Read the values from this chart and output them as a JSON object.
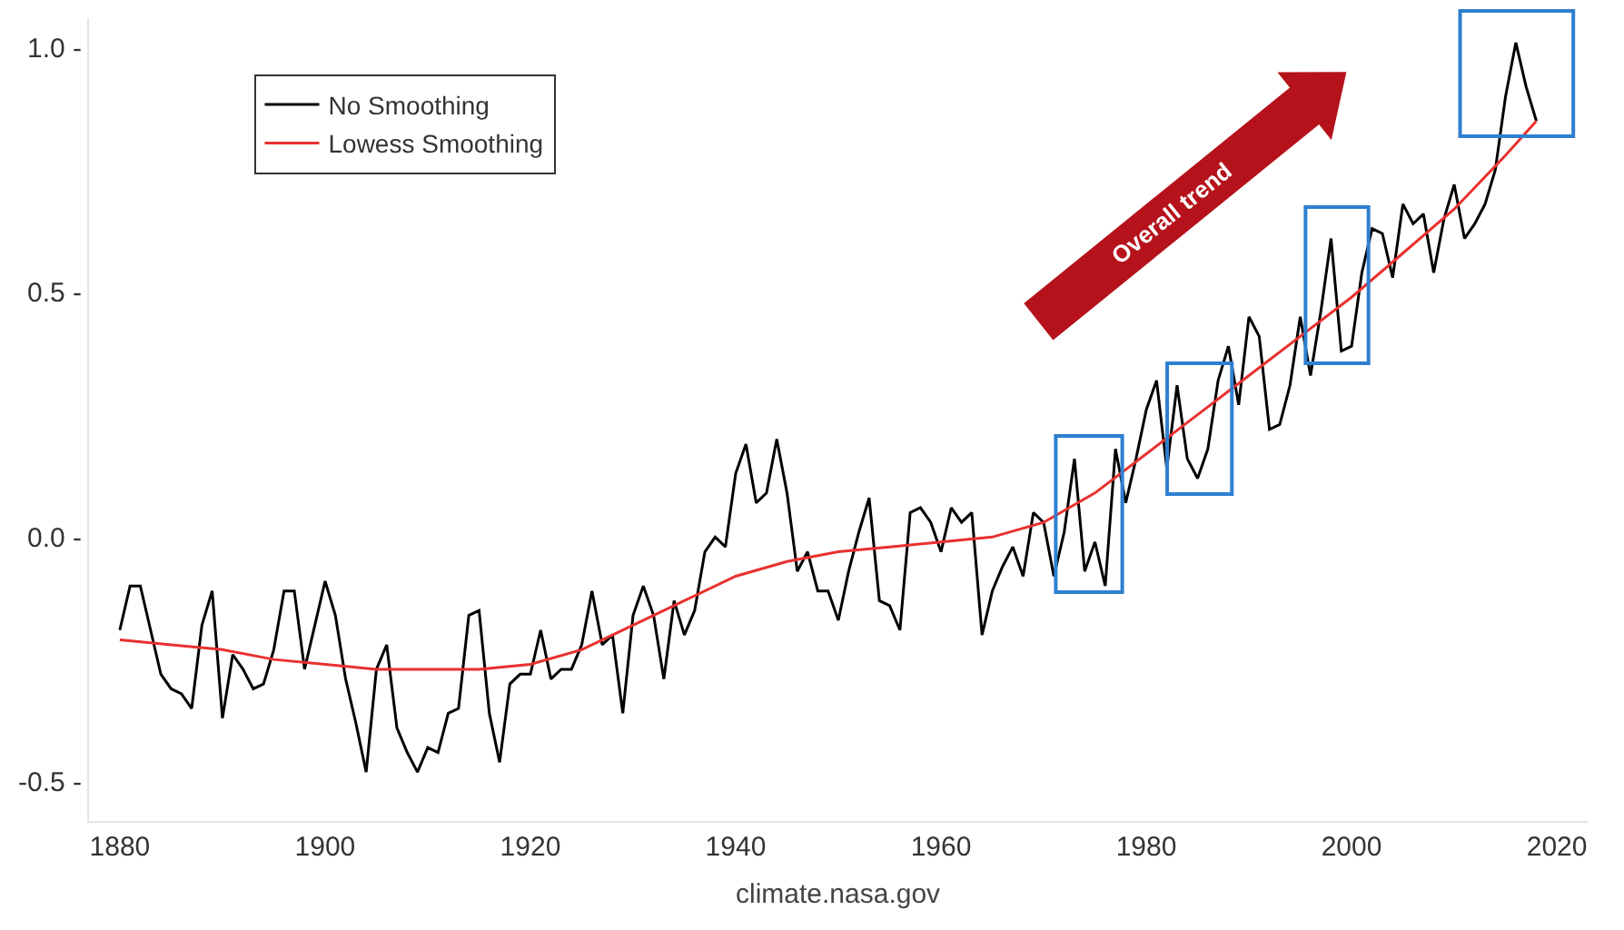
{
  "chart_data": {
    "type": "line",
    "x": [
      1880,
      1881,
      1882,
      1883,
      1884,
      1885,
      1886,
      1887,
      1888,
      1889,
      1890,
      1891,
      1892,
      1893,
      1894,
      1895,
      1896,
      1897,
      1898,
      1899,
      1900,
      1901,
      1902,
      1903,
      1904,
      1905,
      1906,
      1907,
      1908,
      1909,
      1910,
      1911,
      1912,
      1913,
      1914,
      1915,
      1916,
      1917,
      1918,
      1919,
      1920,
      1921,
      1922,
      1923,
      1924,
      1925,
      1926,
      1927,
      1928,
      1929,
      1930,
      1931,
      1932,
      1933,
      1934,
      1935,
      1936,
      1937,
      1938,
      1939,
      1940,
      1941,
      1942,
      1943,
      1944,
      1945,
      1946,
      1947,
      1948,
      1949,
      1950,
      1951,
      1952,
      1953,
      1954,
      1955,
      1956,
      1957,
      1958,
      1959,
      1960,
      1961,
      1962,
      1963,
      1964,
      1965,
      1966,
      1967,
      1968,
      1969,
      1970,
      1971,
      1972,
      1973,
      1974,
      1975,
      1976,
      1977,
      1978,
      1979,
      1980,
      1981,
      1982,
      1983,
      1984,
      1985,
      1986,
      1987,
      1988,
      1989,
      1990,
      1991,
      1992,
      1993,
      1994,
      1995,
      1996,
      1997,
      1998,
      1999,
      2000,
      2001,
      2002,
      2003,
      2004,
      2005,
      2006,
      2007,
      2008,
      2009,
      2010,
      2011,
      2012,
      2013,
      2014,
      2015,
      2016,
      2017,
      2018
    ],
    "series": [
      {
        "name": "No Smoothing",
        "color": "#000000",
        "values": [
          -0.19,
          -0.1,
          -0.1,
          -0.19,
          -0.28,
          -0.31,
          -0.32,
          -0.35,
          -0.18,
          -0.11,
          -0.37,
          -0.24,
          -0.27,
          -0.31,
          -0.3,
          -0.23,
          -0.11,
          -0.11,
          -0.27,
          -0.18,
          -0.09,
          -0.16,
          -0.29,
          -0.38,
          -0.48,
          -0.27,
          -0.22,
          -0.39,
          -0.44,
          -0.48,
          -0.43,
          -0.44,
          -0.36,
          -0.35,
          -0.16,
          -0.15,
          -0.36,
          -0.46,
          -0.3,
          -0.28,
          -0.28,
          -0.19,
          -0.29,
          -0.27,
          -0.27,
          -0.22,
          -0.11,
          -0.22,
          -0.2,
          -0.36,
          -0.16,
          -0.1,
          -0.16,
          -0.29,
          -0.13,
          -0.2,
          -0.15,
          -0.03,
          0.0,
          -0.02,
          0.13,
          0.19,
          0.07,
          0.09,
          0.2,
          0.09,
          -0.07,
          -0.03,
          -0.11,
          -0.11,
          -0.17,
          -0.07,
          0.01,
          0.08,
          -0.13,
          -0.14,
          -0.19,
          0.05,
          0.06,
          0.03,
          -0.03,
          0.06,
          0.03,
          0.05,
          -0.2,
          -0.11,
          -0.06,
          -0.02,
          -0.08,
          0.05,
          0.03,
          -0.08,
          0.01,
          0.16,
          -0.07,
          -0.01,
          -0.1,
          0.18,
          0.07,
          0.16,
          0.26,
          0.32,
          0.14,
          0.31,
          0.16,
          0.12,
          0.18,
          0.32,
          0.39,
          0.27,
          0.45,
          0.41,
          0.22,
          0.23,
          0.31,
          0.45,
          0.33,
          0.46,
          0.61,
          0.38,
          0.39,
          0.54,
          0.63,
          0.62,
          0.53,
          0.68,
          0.64,
          0.66,
          0.54,
          0.65,
          0.72,
          0.61,
          0.64,
          0.68,
          0.75,
          0.9,
          1.01,
          0.92,
          0.85
        ]
      },
      {
        "name": "Lowess Smoothing",
        "color": "#e8312f",
        "x": [
          1880,
          1885,
          1890,
          1895,
          1900,
          1905,
          1910,
          1915,
          1920,
          1925,
          1930,
          1935,
          1940,
          1945,
          1950,
          1955,
          1960,
          1965,
          1970,
          1975,
          1980,
          1985,
          1990,
          1995,
          2000,
          2005,
          2010,
          2015,
          2018
        ],
        "values": [
          -0.21,
          -0.22,
          -0.23,
          -0.25,
          -0.26,
          -0.27,
          -0.27,
          -0.27,
          -0.26,
          -0.23,
          -0.18,
          -0.13,
          -0.08,
          -0.05,
          -0.03,
          -0.02,
          -0.01,
          0.0,
          0.03,
          0.09,
          0.17,
          0.25,
          0.33,
          0.41,
          0.49,
          0.58,
          0.67,
          0.78,
          0.85
        ]
      }
    ],
    "xlim": [
      1877,
      2023
    ],
    "xticks": [
      1880,
      1900,
      1920,
      1940,
      1960,
      1980,
      2000,
      2020
    ],
    "ylim": [
      -0.58,
      1.06
    ],
    "yticks": [
      {
        "value": -0.5,
        "label": "-0.5 -"
      },
      {
        "value": 0.0,
        "label": "0.0 -"
      },
      {
        "value": 0.5,
        "label": "0.5 -"
      },
      {
        "value": 1.0,
        "label": "1.0 -"
      }
    ],
    "annotations": [
      "Overall trend",
      "climate.nasa.gov"
    ],
    "legend": "top left",
    "marker": "none",
    "line_style": "solid"
  }
}
